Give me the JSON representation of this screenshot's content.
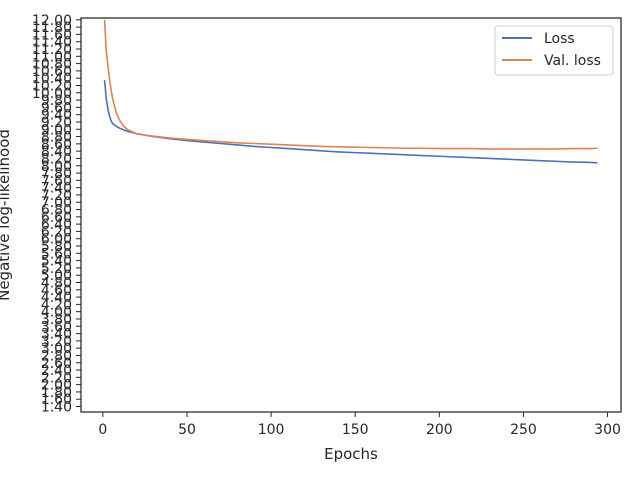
{
  "chart_data": {
    "type": "line",
    "xlabel": "Epochs",
    "ylabel": "Negative log-likelihood",
    "xlim": [
      -13,
      308
    ],
    "ylim": [
      1.25,
      12.05
    ],
    "x_ticks": [
      0,
      50,
      100,
      150,
      200,
      250,
      300
    ],
    "y_ticks": [
      1.4,
      1.6,
      1.8,
      2.0,
      2.2,
      2.4,
      2.6,
      2.8,
      3.0,
      3.2,
      3.4,
      3.6,
      3.8,
      4.0,
      4.2,
      4.4,
      4.6,
      4.8,
      5.0,
      5.2,
      5.4,
      5.6,
      5.8,
      6.0,
      6.2,
      6.4,
      6.6,
      6.8,
      7.0,
      7.2,
      7.4,
      7.6,
      7.8,
      8.0,
      8.2,
      8.4,
      8.6,
      8.8,
      9.0,
      9.2,
      9.4,
      9.6,
      9.8,
      10.0,
      10.2,
      10.4,
      10.6,
      10.8,
      11.0,
      11.2,
      11.4,
      11.6,
      11.8,
      12.0
    ],
    "y_tick_labels": [
      "1.40",
      "1.60",
      "1.80",
      "2.00",
      "2.20",
      "2.40",
      "2.60",
      "2.80",
      "3.00",
      "3.20",
      "3.40",
      "3.60",
      "3.80",
      "4.00",
      "4.20",
      "4.40",
      "4.60",
      "4.80",
      "5.00",
      "5.20",
      "5.40",
      "5.60",
      "5.80",
      "6.00",
      "6.20",
      "6.40",
      "6.60",
      "6.80",
      "7.00",
      "7.20",
      "7.40",
      "7.60",
      "7.80",
      "8.00",
      "8.20",
      "8.40",
      "8.60",
      "8.80",
      "9.00",
      "9.20",
      "9.40",
      "9.60",
      "9.80",
      "10.00",
      "10.20",
      "10.40",
      "10.60",
      "10.80",
      "11.00",
      "11.20",
      "11.40",
      "11.60",
      "11.80",
      "12.00"
    ],
    "grid": false,
    "legend_position": "top-right",
    "series": [
      {
        "name": "Loss",
        "color": "#4c72b0",
        "x": [
          1,
          2,
          3,
          4,
          5,
          6,
          8,
          10,
          12,
          15,
          20,
          25,
          30,
          40,
          50,
          60,
          70,
          80,
          90,
          100,
          110,
          120,
          130,
          140,
          150,
          160,
          170,
          180,
          190,
          200,
          210,
          220,
          230,
          240,
          250,
          260,
          270,
          280,
          290,
          294
        ],
        "y": [
          10.35,
          9.85,
          9.55,
          9.35,
          9.22,
          9.15,
          9.08,
          9.03,
          8.99,
          8.94,
          8.88,
          8.84,
          8.8,
          8.74,
          8.69,
          8.65,
          8.61,
          8.57,
          8.53,
          8.5,
          8.47,
          8.44,
          8.41,
          8.38,
          8.36,
          8.34,
          8.32,
          8.3,
          8.28,
          8.26,
          8.24,
          8.22,
          8.2,
          8.18,
          8.16,
          8.14,
          8.12,
          8.1,
          8.09,
          8.08
        ]
      },
      {
        "name": "Val. loss",
        "color": "#dd8452",
        "x": [
          1,
          2,
          3,
          4,
          5,
          6,
          8,
          10,
          12,
          15,
          20,
          25,
          30,
          40,
          50,
          60,
          70,
          80,
          90,
          100,
          110,
          120,
          130,
          140,
          150,
          160,
          170,
          180,
          190,
          200,
          210,
          220,
          230,
          240,
          250,
          260,
          270,
          280,
          290,
          294
        ],
        "y": [
          12.0,
          11.15,
          10.75,
          10.35,
          10.05,
          9.8,
          9.45,
          9.25,
          9.1,
          8.98,
          8.88,
          8.84,
          8.81,
          8.76,
          8.72,
          8.69,
          8.66,
          8.63,
          8.61,
          8.59,
          8.57,
          8.55,
          8.53,
          8.52,
          8.51,
          8.5,
          8.49,
          8.48,
          8.48,
          8.47,
          8.47,
          8.47,
          8.46,
          8.46,
          8.46,
          8.46,
          8.46,
          8.47,
          8.47,
          8.48
        ]
      }
    ]
  }
}
